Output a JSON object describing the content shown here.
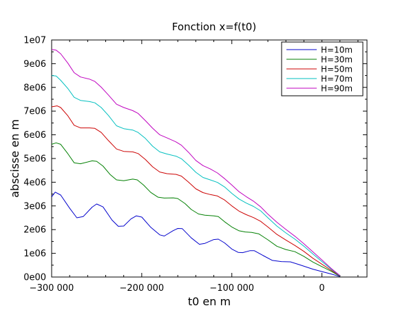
{
  "chart_data": {
    "type": "line",
    "title": "Fonction x=f(t0)",
    "xlabel": "t0 en m",
    "ylabel": "abscisse en m",
    "xlim": [
      -300000,
      50000
    ],
    "ylim": [
      0,
      10000000
    ],
    "grid": false,
    "legend_position": "top-right",
    "x_ticks": [
      -300000,
      -200000,
      -100000,
      0
    ],
    "x_tick_labels": [
      "−300 000",
      "−200 000",
      "−100 000",
      "0"
    ],
    "y_ticks": [
      0,
      1000000,
      2000000,
      3000000,
      4000000,
      5000000,
      6000000,
      7000000,
      8000000,
      9000000,
      10000000
    ],
    "y_tick_labels": [
      "0e00",
      "1e06",
      "2e06",
      "3e06",
      "4e06",
      "5e06",
      "6e06",
      "7e06",
      "8e06",
      "9e06",
      "1e07"
    ],
    "series": [
      {
        "name": "H=10m",
        "color": "#0000cc",
        "points": [
          [
            -300000,
            3380000
          ],
          [
            -296000,
            3580000
          ],
          [
            -290000,
            3460000
          ],
          [
            -280000,
            2900000
          ],
          [
            -272000,
            2500000
          ],
          [
            -265000,
            2550000
          ],
          [
            -255000,
            2950000
          ],
          [
            -250000,
            3080000
          ],
          [
            -243000,
            2960000
          ],
          [
            -233000,
            2400000
          ],
          [
            -226000,
            2140000
          ],
          [
            -220000,
            2150000
          ],
          [
            -212000,
            2450000
          ],
          [
            -206000,
            2580000
          ],
          [
            -200000,
            2530000
          ],
          [
            -190000,
            2100000
          ],
          [
            -180000,
            1780000
          ],
          [
            -175000,
            1730000
          ],
          [
            -165000,
            1960000
          ],
          [
            -160000,
            2050000
          ],
          [
            -155000,
            2040000
          ],
          [
            -145000,
            1650000
          ],
          [
            -136000,
            1380000
          ],
          [
            -130000,
            1420000
          ],
          [
            -120000,
            1580000
          ],
          [
            -115000,
            1600000
          ],
          [
            -108000,
            1440000
          ],
          [
            -100000,
            1180000
          ],
          [
            -93000,
            1040000
          ],
          [
            -88000,
            1030000
          ],
          [
            -80000,
            1110000
          ],
          [
            -75000,
            1110000
          ],
          [
            -65000,
            900000
          ],
          [
            -55000,
            700000
          ],
          [
            -45000,
            650000
          ],
          [
            -35000,
            640000
          ],
          [
            -25000,
            520000
          ],
          [
            -10000,
            330000
          ],
          [
            0,
            230000
          ],
          [
            10000,
            130000
          ],
          [
            20000,
            20000
          ]
        ]
      },
      {
        "name": "H=30m",
        "color": "#007f00",
        "points": [
          [
            -300000,
            5600000
          ],
          [
            -295000,
            5660000
          ],
          [
            -290000,
            5600000
          ],
          [
            -282000,
            5200000
          ],
          [
            -275000,
            4820000
          ],
          [
            -268000,
            4780000
          ],
          [
            -255000,
            4900000
          ],
          [
            -250000,
            4880000
          ],
          [
            -243000,
            4680000
          ],
          [
            -235000,
            4320000
          ],
          [
            -228000,
            4100000
          ],
          [
            -220000,
            4060000
          ],
          [
            -210000,
            4130000
          ],
          [
            -205000,
            4100000
          ],
          [
            -198000,
            3880000
          ],
          [
            -190000,
            3570000
          ],
          [
            -182000,
            3370000
          ],
          [
            -175000,
            3330000
          ],
          [
            -165000,
            3340000
          ],
          [
            -160000,
            3310000
          ],
          [
            -152000,
            3100000
          ],
          [
            -145000,
            2850000
          ],
          [
            -137000,
            2660000
          ],
          [
            -130000,
            2610000
          ],
          [
            -120000,
            2580000
          ],
          [
            -115000,
            2550000
          ],
          [
            -108000,
            2330000
          ],
          [
            -100000,
            2110000
          ],
          [
            -92000,
            1950000
          ],
          [
            -85000,
            1900000
          ],
          [
            -78000,
            1880000
          ],
          [
            -70000,
            1820000
          ],
          [
            -60000,
            1570000
          ],
          [
            -50000,
            1300000
          ],
          [
            -40000,
            1160000
          ],
          [
            -30000,
            1070000
          ],
          [
            -20000,
            870000
          ],
          [
            -10000,
            630000
          ],
          [
            0,
            440000
          ],
          [
            10000,
            250000
          ],
          [
            20000,
            30000
          ]
        ]
      },
      {
        "name": "H=50m",
        "color": "#cc0000",
        "points": [
          [
            -300000,
            7180000
          ],
          [
            -294000,
            7220000
          ],
          [
            -290000,
            7150000
          ],
          [
            -282000,
            6800000
          ],
          [
            -275000,
            6400000
          ],
          [
            -268000,
            6290000
          ],
          [
            -258000,
            6290000
          ],
          [
            -252000,
            6270000
          ],
          [
            -245000,
            6100000
          ],
          [
            -237000,
            5760000
          ],
          [
            -228000,
            5400000
          ],
          [
            -220000,
            5300000
          ],
          [
            -210000,
            5280000
          ],
          [
            -204000,
            5210000
          ],
          [
            -196000,
            4960000
          ],
          [
            -188000,
            4650000
          ],
          [
            -180000,
            4430000
          ],
          [
            -172000,
            4360000
          ],
          [
            -162000,
            4330000
          ],
          [
            -156000,
            4260000
          ],
          [
            -148000,
            4000000
          ],
          [
            -140000,
            3720000
          ],
          [
            -132000,
            3560000
          ],
          [
            -124000,
            3480000
          ],
          [
            -116000,
            3420000
          ],
          [
            -108000,
            3250000
          ],
          [
            -100000,
            3000000
          ],
          [
            -92000,
            2780000
          ],
          [
            -84000,
            2630000
          ],
          [
            -76000,
            2510000
          ],
          [
            -68000,
            2350000
          ],
          [
            -60000,
            2110000
          ],
          [
            -50000,
            1800000
          ],
          [
            -40000,
            1560000
          ],
          [
            -30000,
            1330000
          ],
          [
            -20000,
            1080000
          ],
          [
            -10000,
            790000
          ],
          [
            0,
            540000
          ],
          [
            10000,
            290000
          ],
          [
            20000,
            40000
          ]
        ]
      },
      {
        "name": "H=70m",
        "color": "#00bfbf",
        "points": [
          [
            -300000,
            8500000
          ],
          [
            -295000,
            8480000
          ],
          [
            -290000,
            8300000
          ],
          [
            -282000,
            7950000
          ],
          [
            -275000,
            7580000
          ],
          [
            -268000,
            7450000
          ],
          [
            -258000,
            7400000
          ],
          [
            -252000,
            7350000
          ],
          [
            -245000,
            7150000
          ],
          [
            -237000,
            6820000
          ],
          [
            -228000,
            6380000
          ],
          [
            -220000,
            6260000
          ],
          [
            -210000,
            6200000
          ],
          [
            -204000,
            6100000
          ],
          [
            -196000,
            5850000
          ],
          [
            -188000,
            5520000
          ],
          [
            -180000,
            5280000
          ],
          [
            -172000,
            5190000
          ],
          [
            -162000,
            5100000
          ],
          [
            -156000,
            4990000
          ],
          [
            -148000,
            4720000
          ],
          [
            -140000,
            4420000
          ],
          [
            -132000,
            4200000
          ],
          [
            -124000,
            4100000
          ],
          [
            -116000,
            3990000
          ],
          [
            -108000,
            3800000
          ],
          [
            -100000,
            3530000
          ],
          [
            -92000,
            3290000
          ],
          [
            -84000,
            3120000
          ],
          [
            -76000,
            2980000
          ],
          [
            -68000,
            2790000
          ],
          [
            -60000,
            2500000
          ],
          [
            -50000,
            2150000
          ],
          [
            -40000,
            1860000
          ],
          [
            -30000,
            1600000
          ],
          [
            -20000,
            1300000
          ],
          [
            -10000,
            970000
          ],
          [
            0,
            650000
          ],
          [
            10000,
            340000
          ],
          [
            20000,
            50000
          ]
        ]
      },
      {
        "name": "H=90m",
        "color": "#bf00bf",
        "points": [
          [
            -300000,
            9600000
          ],
          [
            -295000,
            9570000
          ],
          [
            -290000,
            9420000
          ],
          [
            -282000,
            9020000
          ],
          [
            -275000,
            8620000
          ],
          [
            -268000,
            8440000
          ],
          [
            -258000,
            8350000
          ],
          [
            -252000,
            8250000
          ],
          [
            -245000,
            8010000
          ],
          [
            -237000,
            7680000
          ],
          [
            -228000,
            7290000
          ],
          [
            -220000,
            7150000
          ],
          [
            -210000,
            7020000
          ],
          [
            -204000,
            6900000
          ],
          [
            -196000,
            6600000
          ],
          [
            -188000,
            6280000
          ],
          [
            -180000,
            6000000
          ],
          [
            -172000,
            5870000
          ],
          [
            -162000,
            5700000
          ],
          [
            -156000,
            5560000
          ],
          [
            -148000,
            5260000
          ],
          [
            -140000,
            4920000
          ],
          [
            -132000,
            4700000
          ],
          [
            -124000,
            4560000
          ],
          [
            -116000,
            4390000
          ],
          [
            -108000,
            4150000
          ],
          [
            -100000,
            3880000
          ],
          [
            -92000,
            3600000
          ],
          [
            -84000,
            3390000
          ],
          [
            -76000,
            3200000
          ],
          [
            -68000,
            2960000
          ],
          [
            -60000,
            2650000
          ],
          [
            -50000,
            2310000
          ],
          [
            -40000,
            2010000
          ],
          [
            -30000,
            1720000
          ],
          [
            -20000,
            1400000
          ],
          [
            -10000,
            1060000
          ],
          [
            0,
            720000
          ],
          [
            10000,
            370000
          ],
          [
            20000,
            60000
          ]
        ]
      }
    ]
  }
}
